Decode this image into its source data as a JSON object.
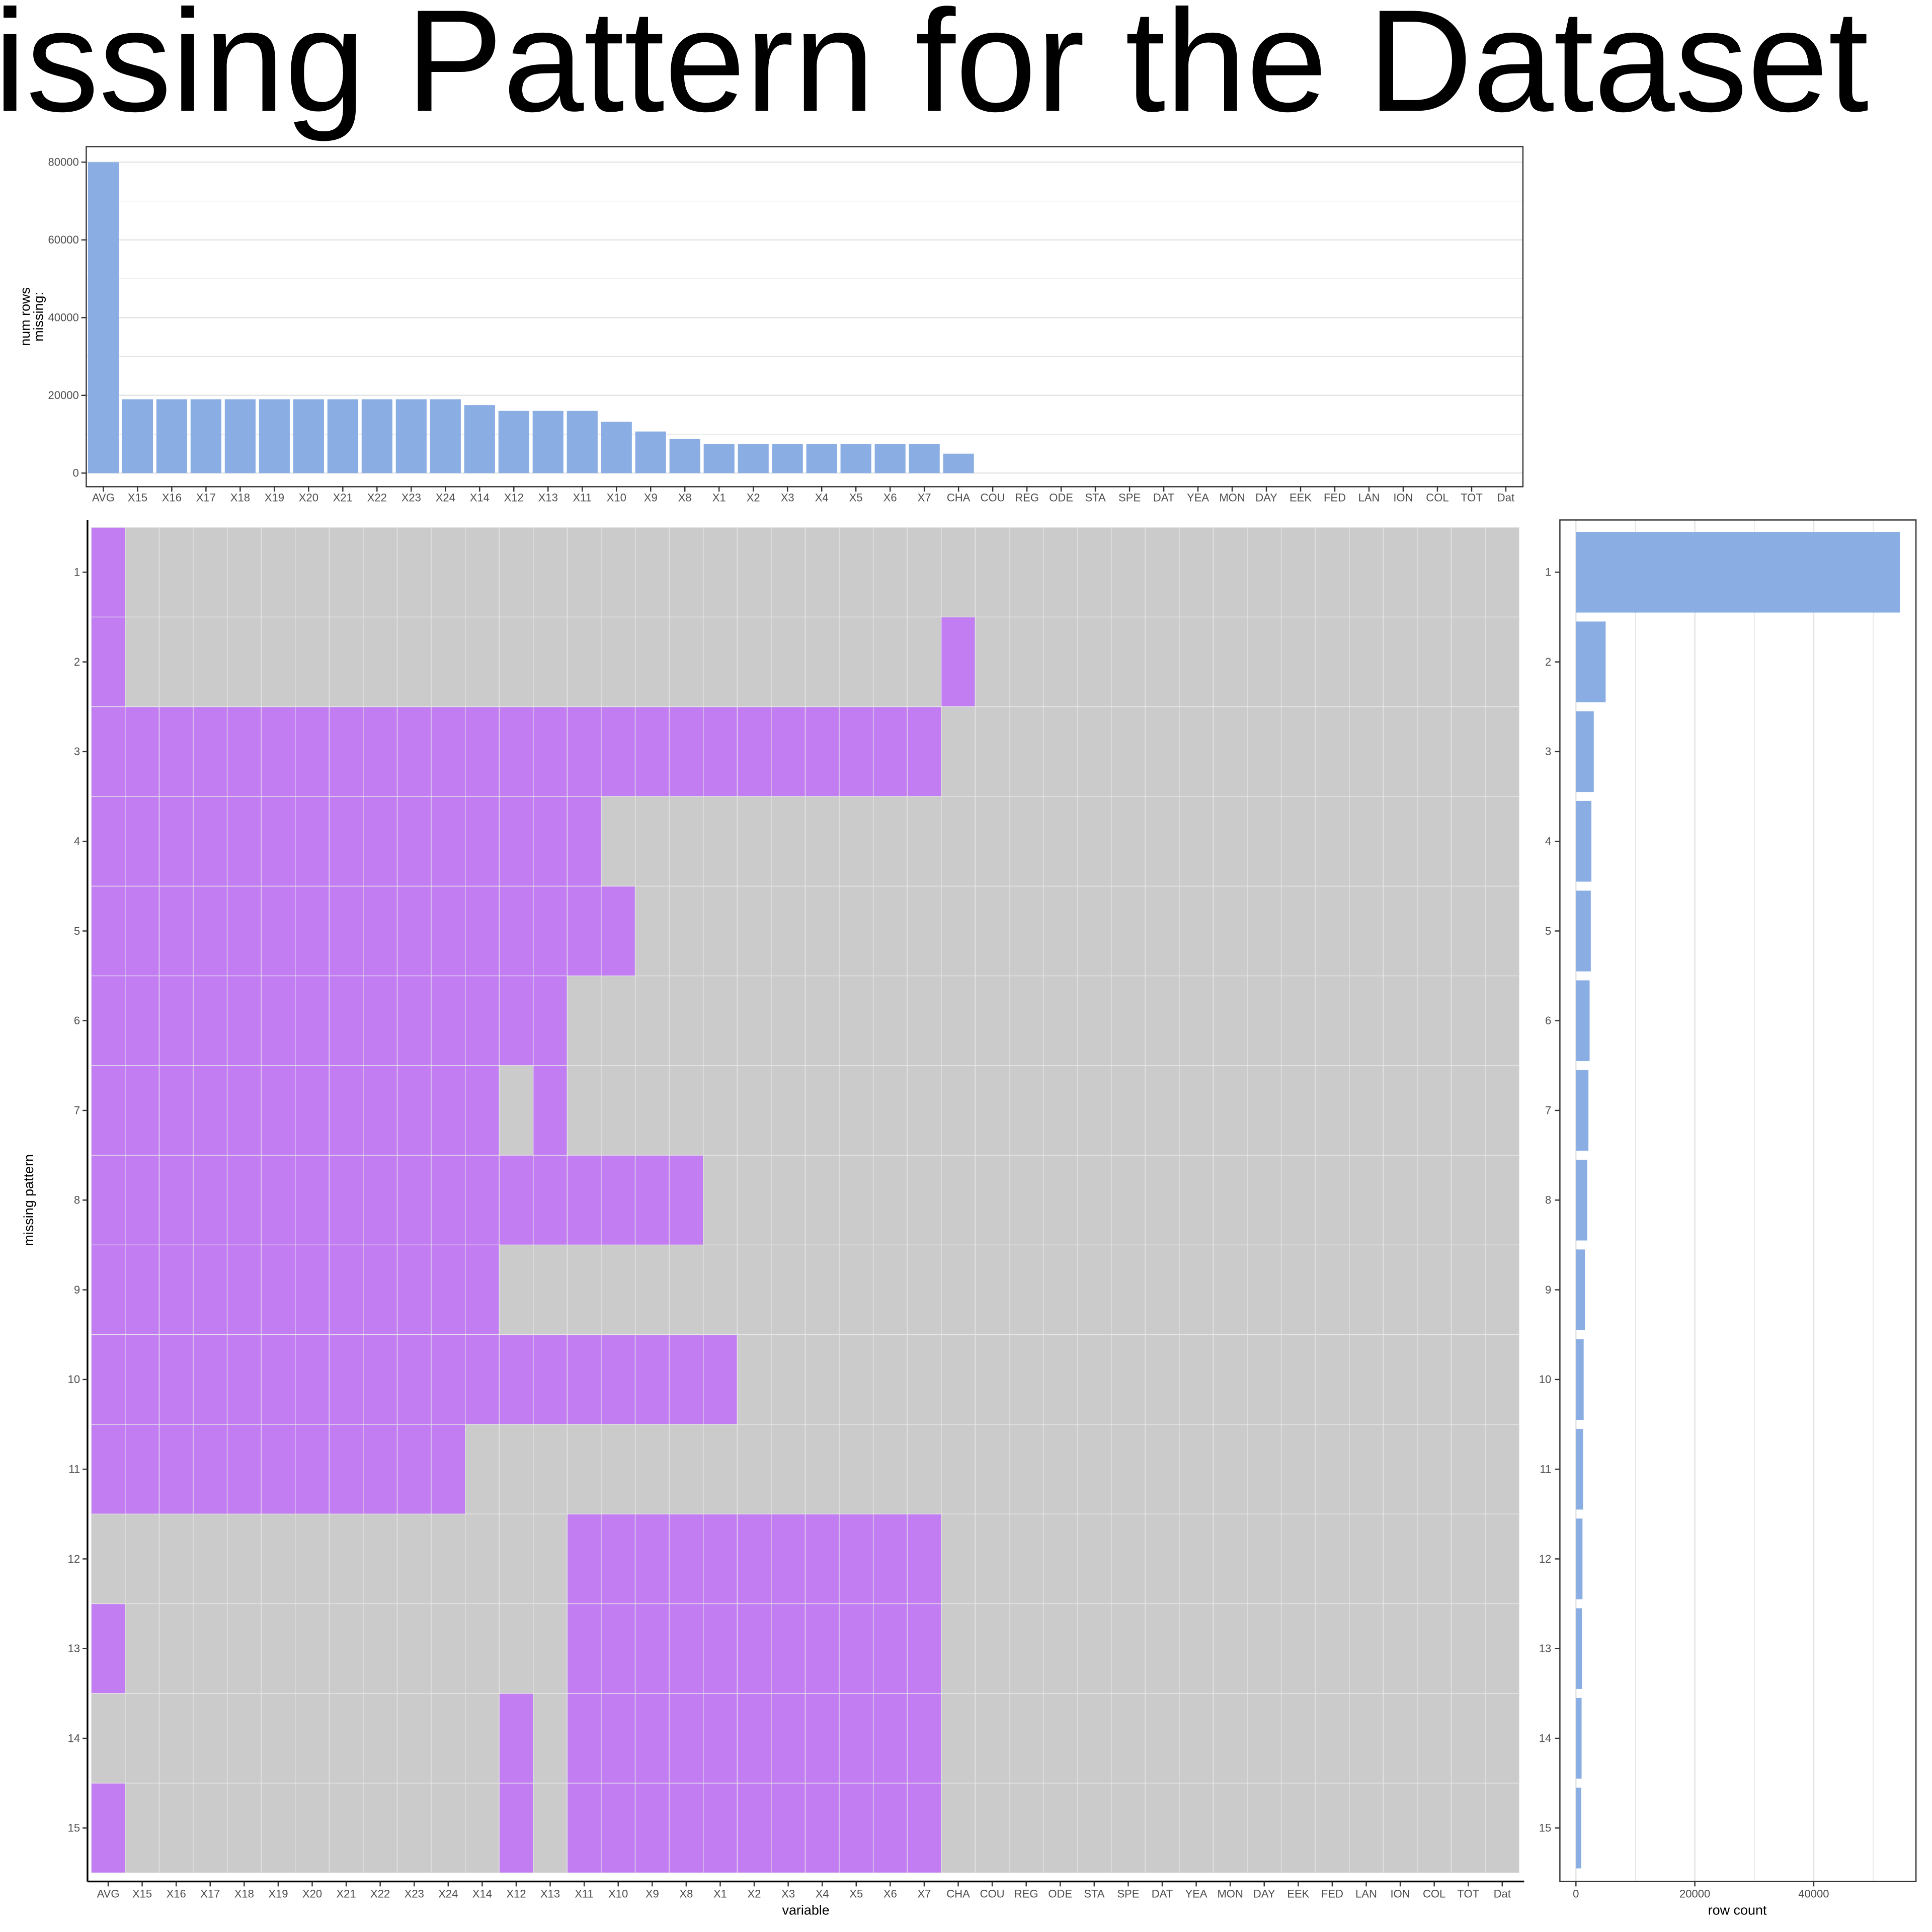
{
  "title": "issing Pattern for the Dataset",
  "colors": {
    "bar": "#8aaee3",
    "missing": "#c27df2",
    "present": "#cbcbcb",
    "grid": "#e3e3e3"
  },
  "chart_data": [
    {
      "type": "bar",
      "name": "top-missing-counts",
      "categories": [
        "AVG",
        "X15",
        "X16",
        "X17",
        "X18",
        "X19",
        "X20",
        "X21",
        "X22",
        "X23",
        "X24",
        "X14",
        "X12",
        "X13",
        "X11",
        "X10",
        "X9",
        "X8",
        "X1",
        "X2",
        "X3",
        "X4",
        "X5",
        "X6",
        "X7",
        "CHA",
        "COU",
        "REG",
        "ODE",
        "STA",
        "SPE",
        "DAT",
        "YEA",
        "MON",
        "DAY",
        "EEK",
        "FED",
        "LAN",
        "ION",
        "COL",
        "TOT",
        "Dat"
      ],
      "values": [
        80000,
        19000,
        19000,
        19000,
        19000,
        19000,
        19000,
        19000,
        19000,
        19000,
        19000,
        17500,
        16000,
        16000,
        16000,
        13200,
        10700,
        8800,
        7500,
        7500,
        7500,
        7500,
        7500,
        7500,
        7500,
        5000,
        0,
        0,
        0,
        0,
        0,
        0,
        0,
        0,
        0,
        0,
        0,
        0,
        0,
        0,
        0,
        0
      ],
      "ylabel": "num rows\nmissing:",
      "yticks": [
        0,
        20000,
        40000,
        60000,
        80000
      ],
      "ylim": [
        -3500,
        84000
      ],
      "grid": true
    },
    {
      "type": "heatmap",
      "name": "missing-pattern-matrix",
      "xlabel": "variable",
      "ylabel": "missing pattern",
      "columns": [
        "AVG",
        "X15",
        "X16",
        "X17",
        "X18",
        "X19",
        "X20",
        "X21",
        "X22",
        "X23",
        "X24",
        "X14",
        "X12",
        "X13",
        "X11",
        "X10",
        "X9",
        "X8",
        "X1",
        "X2",
        "X3",
        "X4",
        "X5",
        "X6",
        "X7",
        "CHA",
        "COU",
        "REG",
        "ODE",
        "STA",
        "SPE",
        "DAT",
        "YEA",
        "MON",
        "DAY",
        "EEK",
        "FED",
        "LAN",
        "ION",
        "COL",
        "TOT",
        "Dat"
      ],
      "rows": [
        "1",
        "2",
        "3",
        "4",
        "5",
        "6",
        "7",
        "8",
        "9",
        "10",
        "11",
        "12",
        "13",
        "14",
        "15"
      ],
      "missing": [
        [
          "AVG"
        ],
        [
          "AVG",
          "CHA"
        ],
        [
          "AVG",
          "X15",
          "X16",
          "X17",
          "X18",
          "X19",
          "X20",
          "X21",
          "X22",
          "X23",
          "X24",
          "X14",
          "X12",
          "X13",
          "X11",
          "X10",
          "X9",
          "X8",
          "X1",
          "X2",
          "X3",
          "X4",
          "X5",
          "X6",
          "X7"
        ],
        [
          "AVG",
          "X15",
          "X16",
          "X17",
          "X18",
          "X19",
          "X20",
          "X21",
          "X22",
          "X23",
          "X24",
          "X14",
          "X12",
          "X13",
          "X11"
        ],
        [
          "AVG",
          "X15",
          "X16",
          "X17",
          "X18",
          "X19",
          "X20",
          "X21",
          "X22",
          "X23",
          "X24",
          "X14",
          "X12",
          "X13",
          "X11",
          "X10"
        ],
        [
          "AVG",
          "X15",
          "X16",
          "X17",
          "X18",
          "X19",
          "X20",
          "X21",
          "X22",
          "X23",
          "X24",
          "X14",
          "X12",
          "X13"
        ],
        [
          "AVG",
          "X15",
          "X16",
          "X17",
          "X18",
          "X19",
          "X20",
          "X21",
          "X22",
          "X23",
          "X24",
          "X14",
          "X13"
        ],
        [
          "AVG",
          "X15",
          "X16",
          "X17",
          "X18",
          "X19",
          "X20",
          "X21",
          "X22",
          "X23",
          "X24",
          "X14",
          "X12",
          "X13",
          "X11",
          "X10",
          "X9",
          "X8"
        ],
        [
          "AVG",
          "X15",
          "X16",
          "X17",
          "X18",
          "X19",
          "X20",
          "X21",
          "X22",
          "X23",
          "X24",
          "X14"
        ],
        [
          "AVG",
          "X15",
          "X16",
          "X17",
          "X18",
          "X19",
          "X20",
          "X21",
          "X22",
          "X23",
          "X24",
          "X14",
          "X12",
          "X13",
          "X11",
          "X10",
          "X9",
          "X8",
          "X1"
        ],
        [
          "AVG",
          "X15",
          "X16",
          "X17",
          "X18",
          "X19",
          "X20",
          "X21",
          "X22",
          "X23",
          "X24"
        ],
        [
          "X11",
          "X10",
          "X9",
          "X8",
          "X1",
          "X2",
          "X3",
          "X4",
          "X5",
          "X6",
          "X7"
        ],
        [
          "AVG",
          "X11",
          "X10",
          "X9",
          "X8",
          "X1",
          "X2",
          "X3",
          "X4",
          "X5",
          "X6",
          "X7"
        ],
        [
          "X12",
          "X11",
          "X10",
          "X9",
          "X8",
          "X1",
          "X2",
          "X3",
          "X4",
          "X5",
          "X6",
          "X7"
        ],
        [
          "AVG",
          "X12",
          "X11",
          "X10",
          "X9",
          "X8",
          "X1",
          "X2",
          "X3",
          "X4",
          "X5",
          "X6",
          "X7"
        ]
      ]
    },
    {
      "type": "bar",
      "name": "right-row-counts",
      "orientation": "horizontal",
      "categories": [
        "1",
        "2",
        "3",
        "4",
        "5",
        "6",
        "7",
        "8",
        "9",
        "10",
        "11",
        "12",
        "13",
        "14",
        "15"
      ],
      "values": [
        54500,
        5000,
        3000,
        2600,
        2500,
        2300,
        2100,
        1900,
        1500,
        1300,
        1200,
        1100,
        1000,
        950,
        900
      ],
      "xlabel": "row count",
      "xticks": [
        0,
        20000,
        40000
      ],
      "xlim": [
        -2700,
        57200
      ],
      "grid": true
    }
  ]
}
